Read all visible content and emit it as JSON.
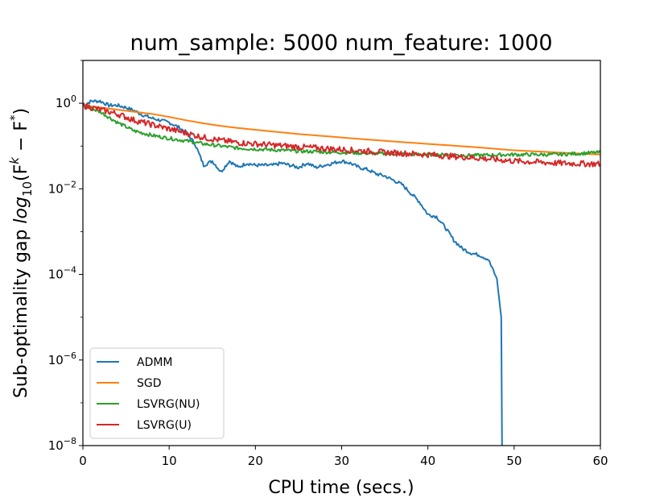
{
  "chart_data": {
    "type": "line",
    "title": "num_sample: 5000 num_feature: 1000",
    "xlabel": "CPU time (secs.)",
    "ylabel": "Sub-optimality gap log10(F^k − F^*)",
    "ylabel_parts": {
      "prefix": "Sub-optimality gap ",
      "log": "log",
      "sub": "10",
      "open": "(F",
      "sup_k": "k",
      "minus": " − F",
      "sup_star": "*",
      "close": ")"
    },
    "xlim": [
      0,
      60
    ],
    "ylim_log10": [
      -8,
      1.0
    ],
    "yscale": "log",
    "x_ticks": [
      "0",
      "10",
      "20",
      "30",
      "40",
      "50",
      "60"
    ],
    "x_tick_values": [
      0,
      10,
      20,
      30,
      40,
      50,
      60
    ],
    "y_ticks": [
      {
        "exp": 0,
        "base": "10",
        "sup": "0"
      },
      {
        "exp": -2,
        "base": "10",
        "sup": "−2"
      },
      {
        "exp": -4,
        "base": "10",
        "sup": "−4"
      },
      {
        "exp": -6,
        "base": "10",
        "sup": "−6"
      },
      {
        "exp": -8,
        "base": "10",
        "sup": "−8"
      }
    ],
    "legend_position": "lower-left",
    "series": [
      {
        "name": "ADMM",
        "color": "#1f77b4",
        "x": [
          0,
          1,
          2,
          3,
          4,
          5,
          6,
          7,
          8,
          9,
          10,
          11,
          12,
          13,
          14,
          15,
          16,
          17,
          18,
          19,
          20,
          21,
          22,
          23,
          24,
          25,
          26,
          27,
          28,
          29,
          30,
          31,
          32,
          33,
          34,
          35,
          36,
          37,
          38,
          39,
          40,
          41,
          42,
          43,
          44,
          45,
          46,
          47,
          48,
          48.5,
          48.6
        ],
        "log10y": [
          -0.05,
          0.05,
          0.05,
          -0.05,
          -0.05,
          -0.1,
          -0.18,
          -0.28,
          -0.35,
          -0.4,
          -0.45,
          -0.55,
          -0.68,
          -0.95,
          -1.45,
          -1.35,
          -1.6,
          -1.35,
          -1.5,
          -1.4,
          -1.45,
          -1.45,
          -1.45,
          -1.4,
          -1.45,
          -1.5,
          -1.4,
          -1.5,
          -1.45,
          -1.4,
          -1.35,
          -1.4,
          -1.5,
          -1.55,
          -1.65,
          -1.7,
          -1.8,
          -1.9,
          -2.1,
          -2.3,
          -2.6,
          -2.65,
          -2.9,
          -3.2,
          -3.4,
          -3.5,
          -3.55,
          -3.65,
          -4.1,
          -5.0,
          -8.0
        ],
        "noise": 0.04
      },
      {
        "name": "SGD",
        "color": "#ff7f0e",
        "x": [
          0,
          2,
          4,
          6,
          8,
          10,
          12,
          14,
          16,
          18,
          20,
          25,
          30,
          35,
          40,
          45,
          50,
          55,
          60
        ],
        "log10y": [
          -0.05,
          -0.1,
          -0.15,
          -0.2,
          -0.25,
          -0.32,
          -0.4,
          -0.47,
          -0.53,
          -0.58,
          -0.62,
          -0.72,
          -0.8,
          -0.88,
          -0.95,
          -1.02,
          -1.1,
          -1.15,
          -1.2
        ],
        "noise": 0
      },
      {
        "name": "LSVRG(NU)",
        "color": "#2ca02c",
        "x": [
          0,
          2,
          4,
          6,
          8,
          10,
          12,
          14,
          16,
          18,
          20,
          25,
          30,
          35,
          40,
          45,
          50,
          55,
          60
        ],
        "log10y": [
          -0.05,
          -0.2,
          -0.45,
          -0.65,
          -0.75,
          -0.82,
          -0.88,
          -0.95,
          -1.0,
          -1.05,
          -1.07,
          -1.12,
          -1.15,
          -1.18,
          -1.2,
          -1.22,
          -1.2,
          -1.2,
          -1.15
        ],
        "noise": 0.04
      },
      {
        "name": "LSVRG(U)",
        "color": "#d62728",
        "x": [
          0,
          2,
          4,
          6,
          8,
          10,
          12,
          14,
          16,
          18,
          20,
          25,
          30,
          35,
          40,
          45,
          50,
          55,
          60
        ],
        "log10y": [
          -0.05,
          -0.15,
          -0.25,
          -0.4,
          -0.5,
          -0.6,
          -0.7,
          -0.8,
          -0.87,
          -0.92,
          -0.95,
          -1.02,
          -1.08,
          -1.15,
          -1.2,
          -1.27,
          -1.35,
          -1.4,
          -1.42
        ],
        "noise": 0.07
      }
    ]
  }
}
